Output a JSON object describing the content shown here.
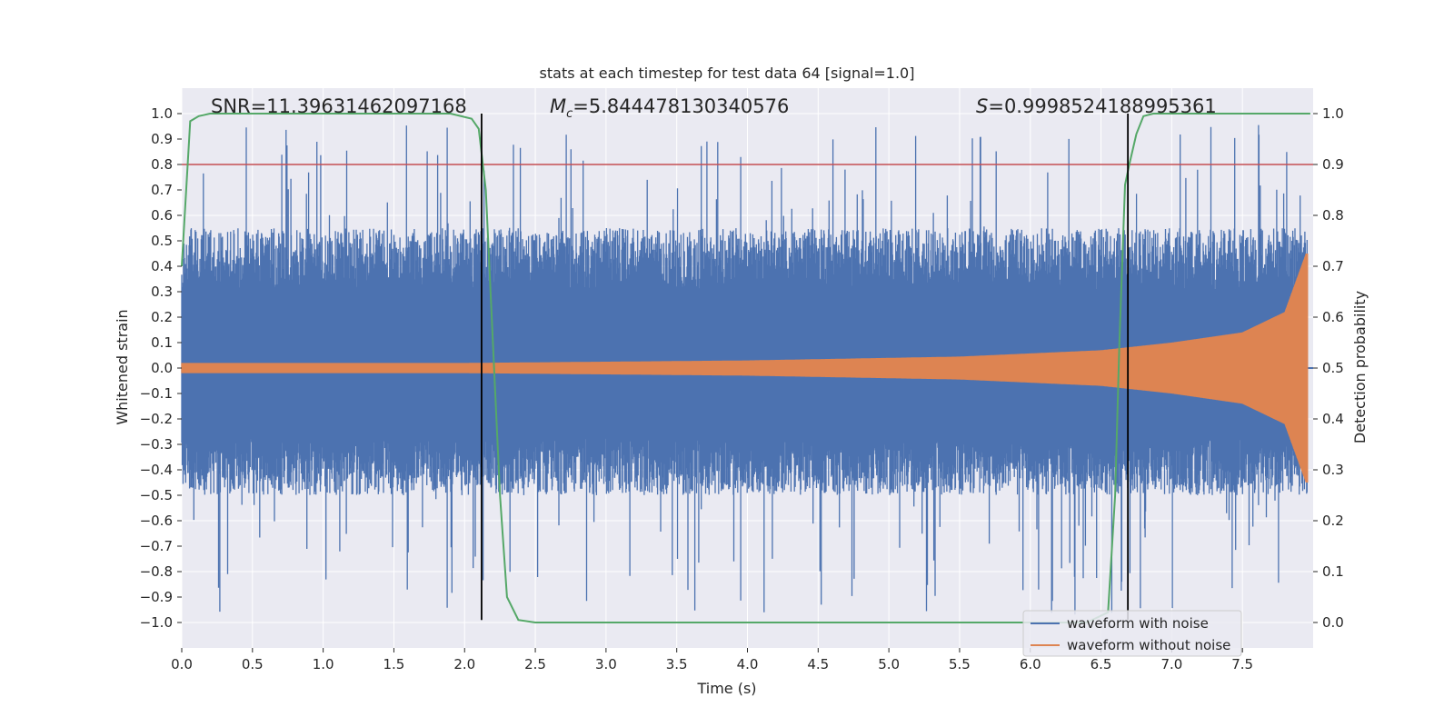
{
  "chart_data": {
    "type": "line",
    "title": "stats at each timestep for test data 64 [signal=1.0]",
    "xlabel": "Time (s)",
    "ylabel": "Whitened strain",
    "y2label": "Detection probability",
    "xlim": [
      0.0,
      8.0
    ],
    "ylim": [
      -1.1,
      1.1
    ],
    "y2lim": [
      -0.05,
      1.05
    ],
    "xticks": [
      0.0,
      0.5,
      1.0,
      1.5,
      2.0,
      2.5,
      3.0,
      3.5,
      4.0,
      4.5,
      5.0,
      5.5,
      6.0,
      6.5,
      7.0,
      7.5
    ],
    "yticks": [
      1.0,
      0.9,
      0.8,
      0.7,
      0.6,
      0.5,
      0.4,
      0.3,
      0.2,
      0.1,
      0.0,
      -0.1,
      -0.2,
      -0.3,
      -0.4,
      -0.5,
      -0.6,
      -0.7,
      -0.8,
      -0.9,
      -1.0
    ],
    "y2ticks": [
      1.0,
      0.9,
      0.8,
      0.7,
      0.6,
      0.5,
      0.4,
      0.3,
      0.2,
      0.1,
      0.0
    ],
    "ygridlines": [
      1.0,
      0.8,
      0.6,
      0.4,
      0.2,
      0.0,
      -0.2,
      -0.4,
      -0.6,
      -0.8,
      -1.0
    ],
    "grid": true,
    "series": [
      {
        "name": "waveform with noise",
        "color": "#4c72b0",
        "axis": "left",
        "description": "noisy whitened strain, approx. +/-0.4 to 0.7 with peaks near +/-0.95",
        "envelope": {
          "upper_typical": 0.55,
          "lower_typical": -0.5,
          "peak_max": 0.96,
          "peak_min": -0.99
        }
      },
      {
        "name": "waveform without noise",
        "color": "#dd8452",
        "axis": "left",
        "description": "chirp signal, amplitude ~0.02 growing to ~0.45 at t=8",
        "amplitude_points": {
          "x": [
            0.0,
            2.0,
            4.0,
            5.5,
            6.5,
            7.0,
            7.5,
            7.8,
            7.95
          ],
          "y": [
            0.02,
            0.02,
            0.03,
            0.045,
            0.07,
            0.1,
            0.14,
            0.22,
            0.45
          ]
        }
      },
      {
        "name": "detection probability",
        "color": "#55a868",
        "axis": "right",
        "x": [
          0.0,
          0.06,
          0.12,
          0.2,
          1.9,
          2.05,
          2.1,
          2.15,
          2.2,
          2.25,
          2.3,
          2.38,
          2.5,
          6.4,
          6.55,
          6.6,
          6.63,
          6.67,
          6.7,
          6.75,
          6.8,
          6.87,
          7.0,
          7.98
        ],
        "y": [
          0.7,
          0.985,
          0.995,
          1.0,
          1.0,
          0.99,
          0.97,
          0.85,
          0.55,
          0.25,
          0.05,
          0.005,
          0.0,
          0.0,
          0.02,
          0.25,
          0.55,
          0.86,
          0.9,
          0.96,
          0.995,
          1.0,
          1.0,
          1.0
        ]
      }
    ],
    "hlines": [
      {
        "y2": 0.9,
        "color": "#c44e52"
      }
    ],
    "vlines": [
      {
        "x": 2.12,
        "ymin": -0.99,
        "ymax": 1.0,
        "color": "#000000"
      },
      {
        "x": 6.69,
        "ymin": -0.99,
        "ymax": 1.0,
        "color": "#000000"
      }
    ],
    "annotations": {
      "snr": "SNR=11.39631462097168",
      "mc_symbol": "M",
      "mc_sub": "c",
      "mc_value": "=5.844478130340576",
      "s_symbol": "S",
      "s_value": "=0.9998524188995361"
    },
    "legend": {
      "placement": "bottom-right",
      "entries": [
        "waveform with noise",
        "waveform without noise"
      ]
    },
    "colors": {
      "plot_background": "#eaeaf2",
      "grid": "#ffffff",
      "text": "#262626",
      "threshold": "#c44e52",
      "marker_lines": "#000000"
    }
  }
}
